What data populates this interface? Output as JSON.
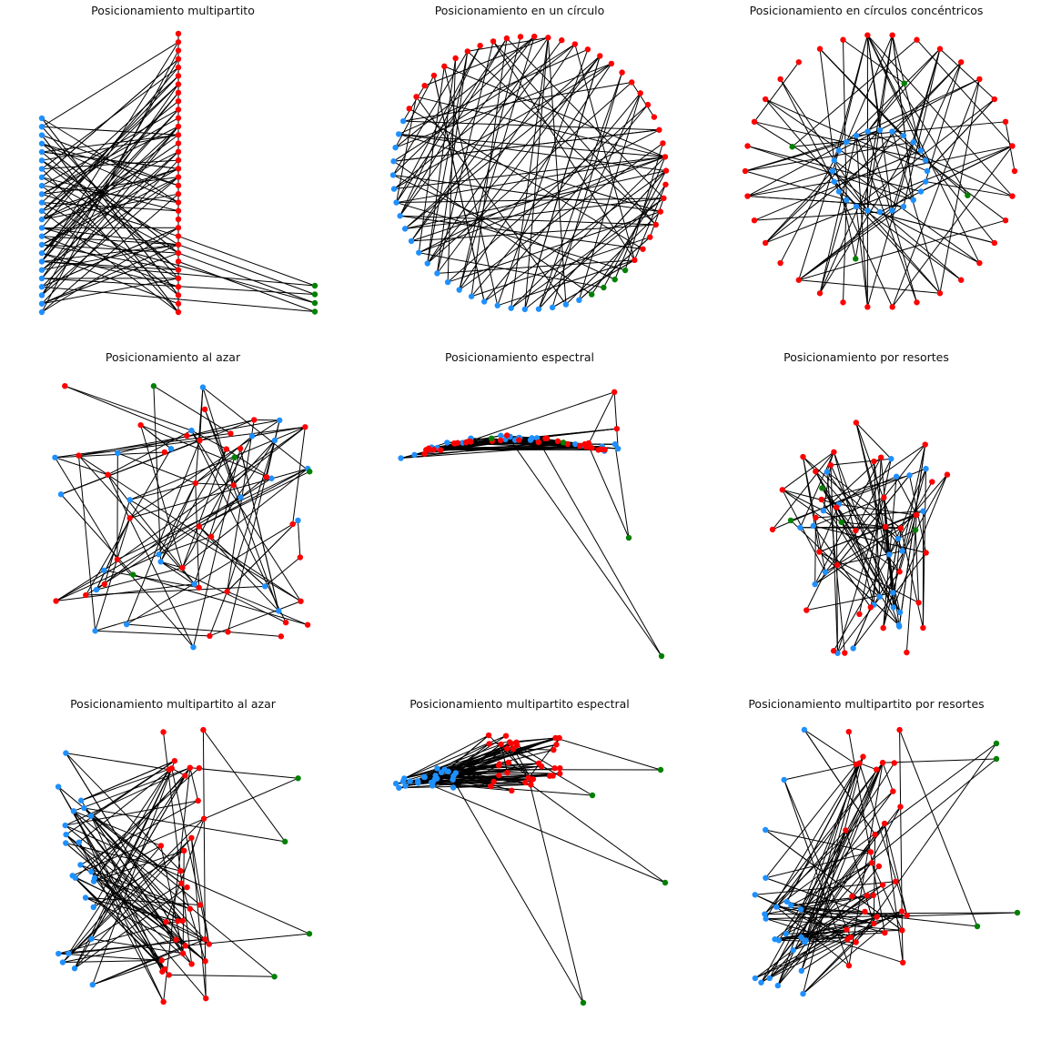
{
  "figure": {
    "colors": {
      "part_a": "#1e90ff",
      "part_b": "#ff0000",
      "part_c": "#008000",
      "edge": "#000000"
    },
    "node_groups": [
      "part-a-blue",
      "part-b-red",
      "part-c-green"
    ]
  },
  "panels": [
    {
      "title": "Posicionamiento multipartito",
      "layout": "multipartite"
    },
    {
      "title": "Posicionamiento en un círculo",
      "layout": "circular"
    },
    {
      "title": "Posicionamiento en círculos concéntricos",
      "layout": "shell"
    },
    {
      "title": "Posicionamiento al azar",
      "layout": "random"
    },
    {
      "title": "Posicionamiento espectral",
      "layout": "spectral"
    },
    {
      "title": "Posicionamiento por resortes",
      "layout": "spring"
    },
    {
      "title": "Posicionamiento multipartito al azar",
      "layout": "multipartite-random"
    },
    {
      "title": "Posicionamiento multipartito espectral",
      "layout": "multipartite-spectral"
    },
    {
      "title": "Posicionamiento multipartito por resortes",
      "layout": "multipartite-spring"
    }
  ]
}
